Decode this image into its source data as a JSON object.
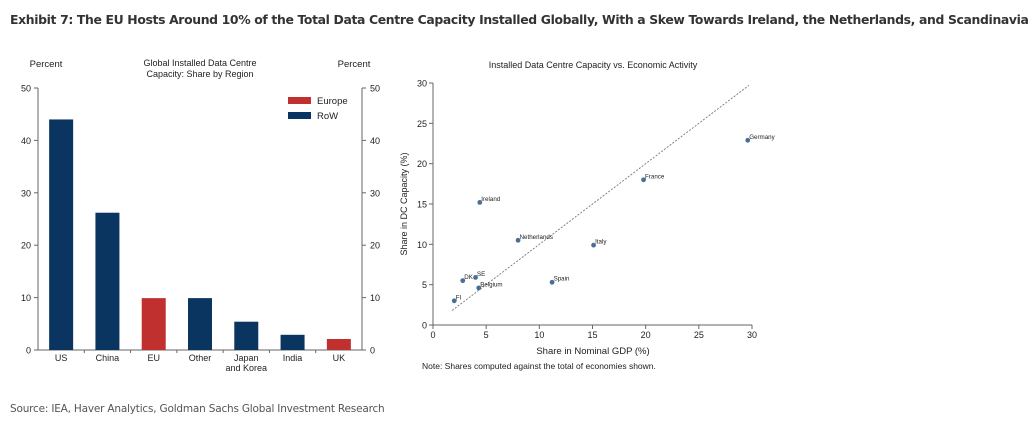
{
  "exhibit": {
    "title": "Exhibit 7: The EU Hosts Around 10% of the Total Data Centre Capacity Installed Globally, With a Skew Towards Ireland, the Netherlands, and Scandinavia",
    "source": "Source: IEA, Haver Analytics, Goldman Sachs Global Investment Research"
  },
  "colors": {
    "europe": "#C0302F",
    "row": "#0B3561",
    "point": "#4A6F94",
    "axis": "#666666"
  },
  "chart_data": [
    {
      "type": "bar",
      "title": "Global Installed Data Centre Capacity: Share by Region",
      "title_lines": [
        "Global Installed Data Centre",
        "Capacity: Share by Region"
      ],
      "ylabel_left": "Percent",
      "ylabel_right": "Percent",
      "categories": [
        "US",
        "China",
        "EU",
        "Other",
        "Japan and Korea",
        "India",
        "UK"
      ],
      "category_lines": [
        [
          "US"
        ],
        [
          "China"
        ],
        [
          "EU"
        ],
        [
          "Other"
        ],
        [
          "Japan",
          "and Korea"
        ],
        [
          "India"
        ],
        [
          "UK"
        ]
      ],
      "values": [
        44,
        26.2,
        9.9,
        9.9,
        5.4,
        2.9,
        2.1
      ],
      "groups": [
        "RoW",
        "RoW",
        "Europe",
        "RoW",
        "RoW",
        "RoW",
        "Europe"
      ],
      "ylim": [
        0,
        50
      ],
      "yticks": [
        0,
        10,
        20,
        30,
        40,
        50
      ],
      "legend": [
        {
          "name": "Europe",
          "color": "#C0302F"
        },
        {
          "name": "RoW",
          "color": "#0B3561"
        }
      ],
      "legend_position": "top-right",
      "grid": false
    },
    {
      "type": "scatter",
      "title": "Installed Data Centre Capacity vs. Economic Activity",
      "xlabel": "Share in Nominal GDP (%)",
      "ylabel": "Share in DC Capacity (%)",
      "xlim": [
        0,
        30
      ],
      "ylim": [
        0,
        30
      ],
      "xticks": [
        0,
        5,
        10,
        15,
        20,
        25,
        30
      ],
      "yticks": [
        0,
        5,
        10,
        15,
        20,
        25,
        30
      ],
      "points": [
        {
          "label": "Germany",
          "x": 29.6,
          "y": 22.9
        },
        {
          "label": "France",
          "x": 19.8,
          "y": 18.0
        },
        {
          "label": "Ireland",
          "x": 4.4,
          "y": 15.2
        },
        {
          "label": "Netherlands",
          "x": 8.0,
          "y": 10.5
        },
        {
          "label": "Italy",
          "x": 15.1,
          "y": 9.9
        },
        {
          "label": "Spain",
          "x": 11.2,
          "y": 5.3
        },
        {
          "label": "SE",
          "x": 4.0,
          "y": 5.9
        },
        {
          "label": "DK",
          "x": 2.8,
          "y": 5.5
        },
        {
          "label": "Belgium",
          "x": 4.3,
          "y": 4.6
        },
        {
          "label": "FI",
          "x": 2.0,
          "y": 3.0
        }
      ],
      "reference_line": {
        "style": "dashed",
        "x": [
          1.8,
          29.7
        ],
        "y": [
          1.8,
          29.7
        ]
      },
      "note": "Note: Shares computed against the total of economies shown.",
      "grid": false
    }
  ]
}
